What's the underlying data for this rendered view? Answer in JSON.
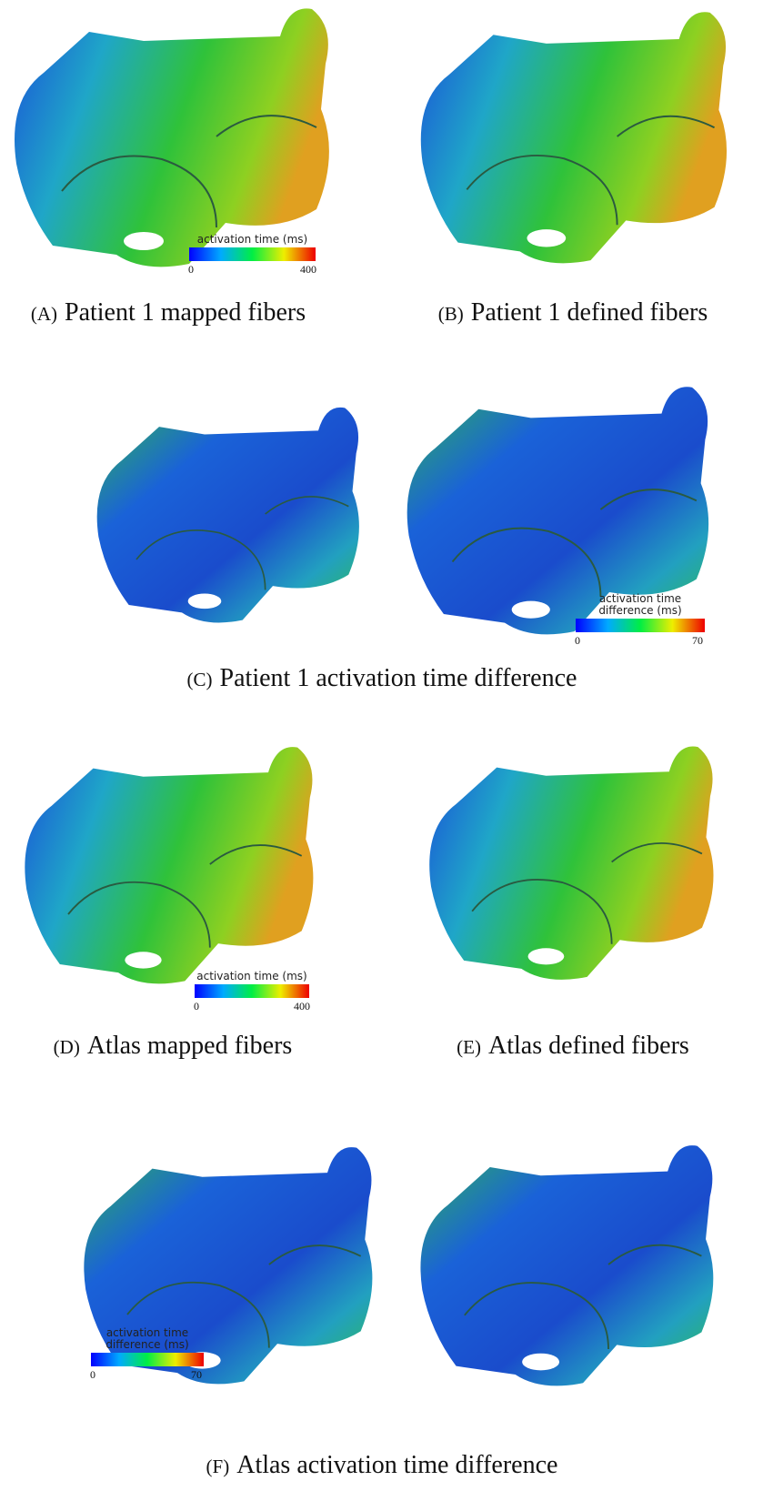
{
  "panels": [
    {
      "label": "(A)",
      "caption": "Patient 1 mapped fibers"
    },
    {
      "label": "(B)",
      "caption": "Patient 1 defined fibers"
    },
    {
      "label": "(C)",
      "caption": "Patient 1 activation time difference"
    },
    {
      "label": "(D)",
      "caption": "Atlas mapped fibers"
    },
    {
      "label": "(E)",
      "caption": "Atlas defined fibers"
    },
    {
      "label": "(F)",
      "caption": "Atlas activation time difference"
    }
  ],
  "colorbars": [
    {
      "title_lines": [
        "activation time (ms)"
      ],
      "min": 0,
      "max": 400
    },
    {
      "title_lines": [
        "activation time",
        "difference (ms)"
      ],
      "min": 0,
      "max": 70
    },
    {
      "title_lines": [
        "activation time (ms)"
      ],
      "min": 0,
      "max": 400
    },
    {
      "title_lines": [
        "activation time",
        "difference (ms)"
      ],
      "min": 0,
      "max": 70
    }
  ]
}
